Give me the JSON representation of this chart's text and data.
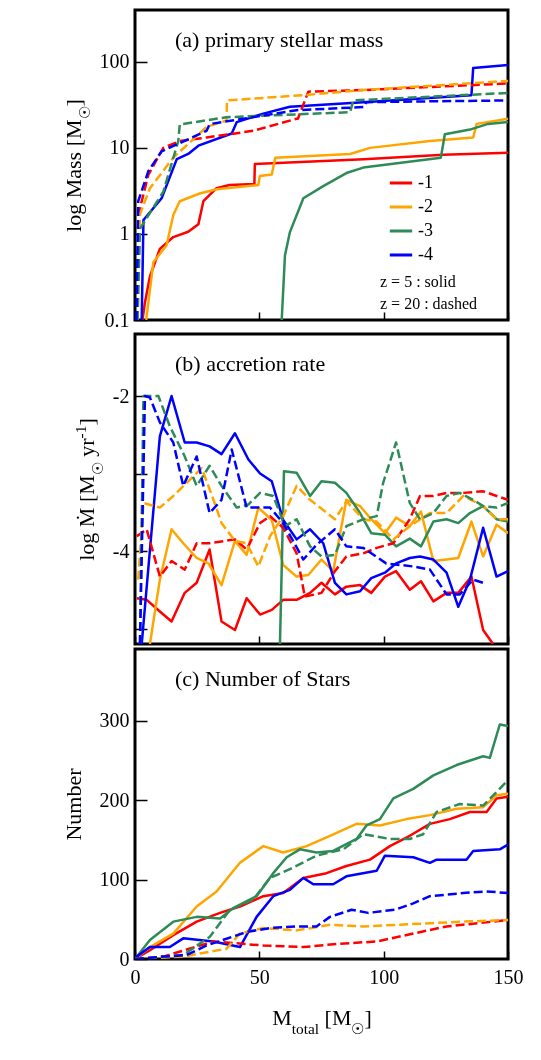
{
  "chart_data": [
    {
      "type": "line",
      "title": "(a) primary stellar mass",
      "ylabel": "log Mass [M$_{☉}$]",
      "xlim": [
        0,
        150
      ],
      "xticks": [
        0,
        50,
        100,
        150
      ],
      "ylim": [
        0.1,
        400
      ],
      "yticks": [
        0.1,
        1,
        10,
        100
      ],
      "log": "y",
      "tick_labels": "y",
      "legend": "bottom right",
      "annotations": [
        "z = 5   : solid",
        "z = 20 : dashed"
      ],
      "series": [
        {
          "name": "-1",
          "color": "#ff0000",
          "line_style": "solid",
          "x": [
            3,
            4,
            6,
            10,
            15.4,
            21.4,
            25.5,
            27.5,
            32.8,
            38,
            48,
            48.2,
            92,
            124,
            150
          ],
          "values": [
            0.1,
            0.16,
            0.32,
            0.67,
            0.92,
            1.06,
            1.3,
            2.4,
            3.4,
            3.7,
            3.8,
            6.5,
            7.4,
            8.3,
            8.8
          ]
        },
        {
          "name": "-2",
          "color": "#ffa500",
          "line_style": "solid",
          "x": [
            4.5,
            7.4,
            12.7,
            15.4,
            18,
            26,
            32.8,
            49.6,
            50.2,
            55,
            56.4,
            86.5,
            94.5,
            118.6,
            136,
            137.4,
            150
          ],
          "values": [
            0.1,
            0.47,
            0.74,
            1.66,
            2.4,
            2.95,
            3.3,
            3.7,
            4.7,
            4.9,
            7.7,
            8.5,
            10,
            12,
            13.2,
            19,
            21.8
          ]
        },
        {
          "name": "-3",
          "color": "#2e8b57",
          "line_style": "solid",
          "x": [
            59,
            60.3,
            62.3,
            67.7,
            75.7,
            85,
            91.8,
            123,
            124.6,
            135.3,
            142,
            150
          ],
          "values": [
            0.1,
            0.56,
            1.05,
            2.6,
            3.6,
            5.1,
            5.9,
            7.7,
            14.4,
            16.5,
            19,
            20
          ]
        },
        {
          "name": "-4",
          "color": "#0000ff",
          "line_style": "solid",
          "x": [
            2.7,
            3.4,
            10.7,
            16.8,
            21.4,
            25.5,
            38.9,
            40.9,
            51.6,
            62.3,
            91.8,
            135.3,
            136,
            150
          ],
          "values": [
            0.1,
            1.45,
            2.6,
            7.4,
            8.5,
            10.6,
            14.7,
            19.9,
            25,
            30,
            34,
            41,
            85,
            92
          ]
        },
        {
          "color": "#ff0000",
          "line_style": "dashed",
          "x": [
            0.8,
            2,
            5.4,
            11.4,
            18,
            28.8,
            47.6,
            65,
            65.5,
            69.7,
            92,
            150
          ],
          "values": [
            0.1,
            2,
            4.9,
            10,
            12,
            13.2,
            15.8,
            21.8,
            21.8,
            45,
            47,
            56
          ]
        },
        {
          "color": "#ffa500",
          "line_style": "dashed",
          "x": [
            1,
            2,
            6,
            15.4,
            28.8,
            36.8,
            37,
            67.7,
            92,
            150
          ],
          "values": [
            0.1,
            1.7,
            3.4,
            7.7,
            17.5,
            20.8,
            35.6,
            41,
            47,
            60
          ]
        },
        {
          "color": "#2e8b57",
          "line_style": "dashed",
          "x": [
            1,
            2,
            11.4,
            17.4,
            18,
            36.8,
            86.5,
            87.8,
            150
          ],
          "values": [
            0.1,
            1.15,
            3.1,
            12,
            18.7,
            22.7,
            26,
            35.6,
            43.5
          ]
        },
        {
          "color": "#0000ff",
          "line_style": "dashed",
          "x": [
            0.6,
            1.3,
            5.4,
            10.7,
            28.8,
            30,
            65,
            92,
            93,
            150
          ],
          "values": [
            0.1,
            2.4,
            5.4,
            9.1,
            15.8,
            18.9,
            27.4,
            29.8,
            34,
            35.6
          ]
        }
      ]
    },
    {
      "type": "line",
      "title": "(b) accretion rate",
      "ylabel": "log Ṁ  [M$_{☉}$ yr$^{-1}$]",
      "xlim": [
        0,
        150
      ],
      "xticks": [
        0,
        50,
        100,
        150
      ],
      "ylim": [
        -5.2,
        -1.2
      ],
      "yticks": [
        -2,
        {
          "value": -3,
          "label": null
        },
        -4,
        {
          "value": -5,
          "label": null
        }
      ],
      "tick_labels": "y",
      "series": [
        {
          "color": "#ff0000",
          "line_style": "solid",
          "x": [
            0.7,
            4.7,
            10,
            14.7,
            20,
            24.8,
            30,
            34.8,
            40.2,
            44.9,
            50.3,
            55,
            59.6,
            65,
            70.4,
            75,
            80.4,
            85,
            90.5,
            95,
            100.5,
            105,
            110.5,
            115,
            120,
            125.3,
            130,
            135.3,
            140,
            144
          ],
          "values": [
            -4.61,
            -4.63,
            -4.78,
            -4.91,
            -4.54,
            -4.41,
            -3.98,
            -4.91,
            -5.02,
            -4.61,
            -4.82,
            -4.76,
            -4.63,
            -4.63,
            -4.54,
            -4.41,
            -4.56,
            -4.46,
            -4.44,
            -4.54,
            -4.33,
            -4.26,
            -4.5,
            -4.39,
            -4.65,
            -4.54,
            -4.54,
            -4.33,
            -5.02,
            -5.2
          ]
        },
        {
          "color": "#ffa500",
          "line_style": "solid",
          "x": [
            6,
            10,
            14.7,
            19.4,
            24.8,
            29.5,
            34.8,
            40.2,
            44.9,
            49.6,
            55,
            59.6,
            65,
            69.7,
            75,
            79.7,
            85,
            90.5,
            95,
            100.5,
            105,
            110.5,
            115,
            120,
            125.3,
            130,
            135.3,
            140,
            145.4,
            150
          ],
          "values": [
            -5.2,
            -4.37,
            -3.72,
            -3.9,
            -4.09,
            -4.16,
            -4.44,
            -3.87,
            -4.05,
            -3.44,
            -3.6,
            -4.18,
            -4.33,
            -4.31,
            -4.11,
            -4.26,
            -3.34,
            -3.42,
            -3.59,
            -3.77,
            -3.57,
            -3.68,
            -3.49,
            -4.13,
            -4.11,
            -4.09,
            -3.62,
            -4.07,
            -3.66,
            -3.77
          ]
        },
        {
          "color": "#2e8b57",
          "line_style": "solid",
          "x": [
            58.3,
            59.9,
            65,
            70.4,
            75,
            80.4,
            85,
            90.5,
            95,
            100.5,
            105,
            110.5,
            115,
            120,
            125.3,
            130,
            134.7,
            140,
            145.4,
            150
          ],
          "values": [
            -5.2,
            -2.97,
            -2.99,
            -3.29,
            -3.1,
            -3.12,
            -3.25,
            -3.51,
            -3.77,
            -3.79,
            -3.94,
            -3.84,
            -3.94,
            -3.62,
            -3.59,
            -3.64,
            -3.51,
            -3.42,
            -3.59,
            -3.62
          ]
        },
        {
          "color": "#0000ff",
          "line_style": "solid",
          "x": [
            2.7,
            10,
            14.7,
            20,
            24.8,
            30,
            34.8,
            40.2,
            45.6,
            50.3,
            55,
            59.6,
            65,
            70.4,
            75.7,
            80.4,
            85,
            90.5,
            95,
            100.5,
            105,
            110.5,
            114.6,
            120,
            125.3,
            130,
            134.7,
            140,
            145.4,
            150
          ],
          "values": [
            -5.2,
            -2.52,
            -2,
            -2.6,
            -2.6,
            -2.65,
            -2.75,
            -2.48,
            -2.82,
            -3,
            -3.1,
            -3.6,
            -3.85,
            -3.72,
            -3.9,
            -4.41,
            -4.56,
            -4.52,
            -4.35,
            -4.28,
            -4.16,
            -4.09,
            -4.07,
            -4.11,
            -4.28,
            -4.72,
            -4.37,
            -3.7,
            -4.33,
            -4.26
          ]
        },
        {
          "color": "#ff0000",
          "line_style": "dashed",
          "x": [
            0.7,
            4.7,
            10,
            14.7,
            20,
            24.8,
            30,
            40.2,
            44.9,
            50.3,
            54.3,
            59.6,
            65,
            68.3,
            75,
            80.4,
            85,
            91.8,
            97.2,
            103.9,
            110.5,
            114.6,
            120,
            125.3,
            132,
            140,
            150
          ],
          "values": [
            -3.81,
            -3.72,
            -4.33,
            -4.13,
            -4.24,
            -3.9,
            -3.9,
            -3.85,
            -3.98,
            -3.64,
            -3.55,
            -3.7,
            -4.03,
            -4.59,
            -4.54,
            -4.26,
            -4.07,
            -4.03,
            -3.96,
            -3.9,
            -3.59,
            -3.29,
            -3.29,
            -3.25,
            -3.25,
            -3.23,
            -3.34
          ]
        },
        {
          "color": "#ffa500",
          "line_style": "dashed",
          "x": [
            1.3,
            3.4,
            10,
            15.4,
            20.8,
            26.8,
            30.8,
            34.8,
            40.2,
            44.9,
            49.6,
            54.3,
            59.6,
            65,
            70.4,
            75.7,
            80.4,
            85,
            91.8,
            97.2,
            103.9,
            110.5,
            118.6,
            125.3,
            132,
            140,
            145.4,
            150
          ],
          "values": [
            -4.37,
            -3.38,
            -3.44,
            -3.29,
            -3.12,
            -2.93,
            -3.27,
            -3.64,
            -3.87,
            -3.9,
            -4.2,
            -3.81,
            -3.55,
            -3.16,
            -3.34,
            -3.47,
            -3.59,
            -3.36,
            -3.59,
            -3.62,
            -3.85,
            -3.68,
            -3.51,
            -3.51,
            -3.29,
            -3.42,
            -3.59,
            -3.59
          ]
        },
        {
          "color": "#2e8b57",
          "line_style": "dashed",
          "x": [
            2,
            3.4,
            9.4,
            14,
            20,
            24.8,
            30,
            34.8,
            40.9,
            45.6,
            50.3,
            55.6,
            60.3,
            65,
            70.4,
            75,
            80.4,
            85,
            91.8,
            97.2,
            99.8,
            105,
            110.5,
            114.6,
            120,
            125.3,
            130.6,
            136,
            140,
            145.4,
            150
          ],
          "values": [
            -5.2,
            -2,
            -2,
            -2.39,
            -2.78,
            -3.16,
            -2.9,
            -3.16,
            -3.44,
            -3.4,
            -3.25,
            -3.29,
            -3.68,
            -3.59,
            -3.94,
            -4.07,
            -4.05,
            -3.68,
            -3.59,
            -3.55,
            -3.12,
            -2.6,
            -3.38,
            -3.59,
            -3.51,
            -3.29,
            -3.25,
            -3.34,
            -3.42,
            -3.44,
            -3.38
          ]
        },
        {
          "color": "#0000ff",
          "line_style": "dashed",
          "x": [
            2,
            4,
            6,
            10,
            15.4,
            19.4,
            24.8,
            30,
            34.8,
            38.9,
            44.9,
            54.3,
            59.6,
            67.7,
            73,
            80.4,
            85,
            91.8,
            101,
            112,
            118.6,
            125.3,
            130.6,
            136,
            140
          ],
          "values": [
            -5.2,
            -2,
            -2.02,
            -2.34,
            -2.6,
            -3.16,
            -2.78,
            -3.51,
            -3.34,
            -2.69,
            -3.44,
            -3.44,
            -3.64,
            -4.11,
            -3.92,
            -3.72,
            -3.94,
            -3.96,
            -4.16,
            -4.2,
            -4.24,
            -4.56,
            -4.56,
            -4.37,
            -4.41
          ]
        }
      ]
    },
    {
      "type": "line",
      "title": "(c) Number of Stars",
      "xlabel": "M$_{total}$ [M$_{☉}$]",
      "ylabel": "Number",
      "xlim": [
        0,
        150
      ],
      "xticks": [
        0,
        50,
        100,
        150
      ],
      "ylim": [
        0,
        390
      ],
      "yticks": [
        0,
        100,
        200,
        300
      ],
      "series": [
        {
          "color": "#ff0000",
          "line_style": "solid",
          "x": [
            0,
            6,
            15.4,
            24.8,
            34.2,
            42.2,
            51.6,
            59.6,
            67.7,
            77,
            85,
            94.5,
            102.5,
            110.5,
            118.6,
            126.6,
            134.7,
            141.4,
            145.4,
            150
          ],
          "values": [
            0,
            11,
            30,
            47,
            58,
            66,
            79,
            83,
            102,
            108,
            117,
            125,
            142,
            155,
            170,
            176,
            185,
            185,
            202,
            204
          ]
        },
        {
          "color": "#ffa500",
          "line_style": "solid",
          "x": [
            0,
            6,
            15.4,
            24.8,
            32.8,
            42.2,
            51.6,
            59.6,
            69,
            78.4,
            89.1,
            98.5,
            109.2,
            118.6,
            129.3,
            140,
            145.4,
            150
          ],
          "values": [
            0,
            15,
            32,
            66,
            85,
            121,
            142,
            134,
            142,
            155,
            170,
            168,
            176,
            181,
            189,
            191,
            206,
            208
          ]
        },
        {
          "color": "#2e8b57",
          "line_style": "solid",
          "x": [
            0,
            6,
            15.4,
            24.8,
            34.2,
            39.5,
            48.9,
            55.6,
            61,
            66.3,
            73,
            79.7,
            89.1,
            93.1,
            98.5,
            103.9,
            111.9,
            120,
            129.3,
            140,
            142.7,
            146.7,
            150
          ],
          "values": [
            0,
            24,
            47,
            53,
            51,
            64,
            79,
            108,
            128,
            138,
            134,
            136,
            151,
            168,
            176,
            202,
            214,
            231,
            244,
            255,
            253,
            295,
            293
          ]
        },
        {
          "color": "#0000ff",
          "line_style": "solid",
          "x": [
            0,
            0.7,
            6,
            14,
            19.4,
            31.5,
            42.2,
            48.9,
            55.6,
            62.3,
            67.7,
            71.7,
            79.7,
            85,
            97.2,
            100.5,
            111.9,
            118.6,
            121.3,
            133.3,
            136,
            146.7,
            150
          ],
          "values": [
            0,
            3,
            15,
            15,
            26,
            22,
            15,
            53,
            79,
            87,
            102,
            94,
            94,
            104,
            111,
            130,
            128,
            121,
            125,
            125,
            136,
            138,
            144
          ]
        },
        {
          "color": "#ff0000",
          "line_style": "dashed",
          "x": [
            0,
            11.4,
            31.5,
            51.6,
            67.7,
            81.1,
            97.2,
            111.9,
            125.3,
            150
          ],
          "values": [
            0,
            3,
            22,
            17,
            15,
            19,
            22,
            32,
            41,
            49
          ]
        },
        {
          "color": "#ffa500",
          "line_style": "dashed",
          "x": [
            0,
            19.4,
            36.8,
            42.2,
            51.6,
            65,
            78.4,
            91.8,
            105.2,
            118.6,
            132,
            150
          ],
          "values": [
            0,
            3,
            13,
            32,
            39,
            36,
            43,
            41,
            43,
            45,
            47,
            49
          ]
        },
        {
          "color": "#2e8b57",
          "line_style": "dashed",
          "x": [
            0,
            19.4,
            30.1,
            38.2,
            47.6,
            54.3,
            62.3,
            73,
            83.8,
            91.8,
            102.5,
            110.5,
            115.9,
            121.3,
            130.6,
            140,
            145.4,
            150
          ],
          "values": [
            0,
            5,
            28,
            62,
            75,
            102,
            113,
            130,
            138,
            157,
            151,
            151,
            157,
            185,
            195,
            193,
            210,
            225
          ]
        },
        {
          "color": "#0000ff",
          "line_style": "dashed",
          "x": [
            0,
            11.4,
            20.8,
            28.8,
            44.9,
            54.3,
            65,
            73,
            78.4,
            87.1,
            93.8,
            104.5,
            111.9,
            118.6,
            132,
            141.4,
            150
          ],
          "values": [
            0,
            3,
            5,
            17,
            34,
            39,
            41,
            41,
            53,
            62,
            58,
            62,
            70,
            79,
            83,
            85,
            83
          ]
        }
      ]
    }
  ]
}
